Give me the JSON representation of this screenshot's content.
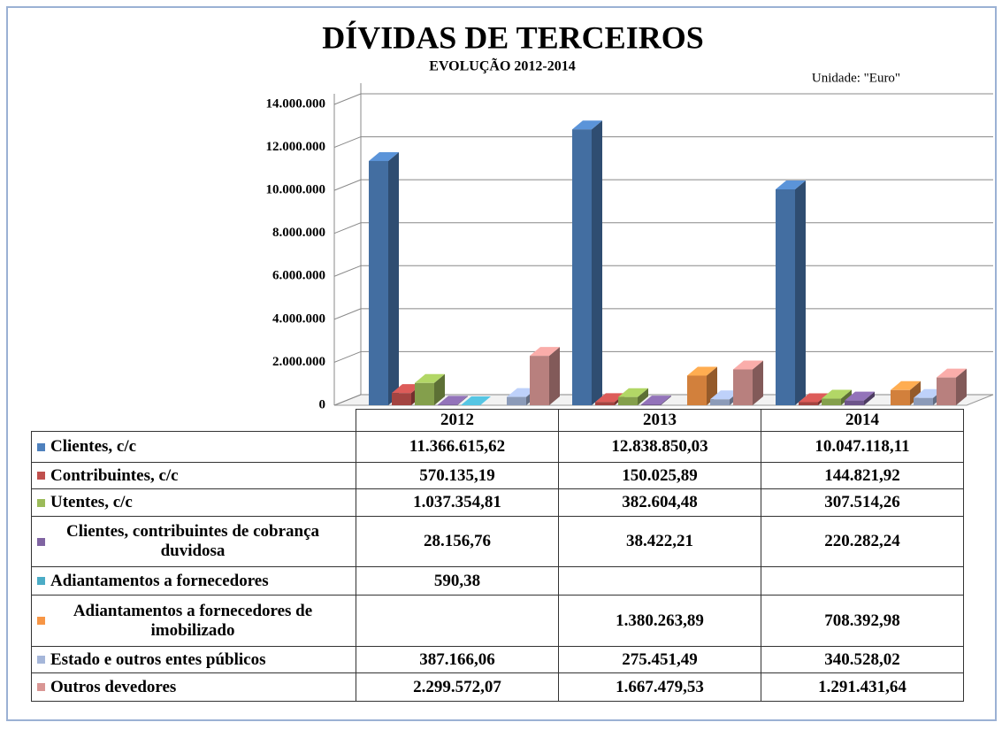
{
  "chart_data": {
    "type": "bar3d",
    "title": "DÍVIDAS DE TERCEIROS",
    "subtitle": "EVOLUÇÃO 2012-2014",
    "annotation": "Unidade: \"Euro\"",
    "categories": [
      "2012",
      "2013",
      "2014"
    ],
    "ylim": [
      0,
      14000000
    ],
    "yticks": [
      0,
      {
        "value": 2000000,
        "label": "2.000.000"
      },
      {
        "value": 4000000,
        "label": "4.000.000"
      },
      {
        "value": 6000000,
        "label": "6.000.000"
      },
      {
        "value": 8000000,
        "label": "8.000.000"
      },
      {
        "value": 10000000,
        "label": "10.000.000"
      },
      {
        "value": 12000000,
        "label": "12.000.000"
      },
      {
        "value": 14000000,
        "label": "14.000.000"
      }
    ],
    "grid": true,
    "series": [
      {
        "name": "Clientes, c/c",
        "color": "#4f81bd",
        "values": [
          11366615.62,
          12838850.03,
          10047118.11
        ],
        "value_labels": [
          "11.366.615,62",
          "12.838.850,03",
          "10.047.118,11"
        ]
      },
      {
        "name": "Contribuintes, c/c",
        "color": "#c0504d",
        "values": [
          570135.19,
          150025.89,
          144821.92
        ],
        "value_labels": [
          "570.135,19",
          "150.025,89",
          "144.821,92"
        ]
      },
      {
        "name": "Utentes, c/c",
        "color": "#9bbb59",
        "values": [
          1037354.81,
          382604.48,
          307514.26
        ],
        "value_labels": [
          "1.037.354,81",
          "382.604,48",
          "307.514,26"
        ]
      },
      {
        "name": "Clientes, contribuintes de cobrança duvidosa",
        "color": "#8064a2",
        "values": [
          28156.76,
          38422.21,
          220282.24
        ],
        "value_labels": [
          "28.156,76",
          "38.422,21",
          "220.282,24"
        ]
      },
      {
        "name": "Adiantamentos a fornecedores",
        "color": "#4bacc6",
        "values": [
          590.38,
          null,
          null
        ],
        "value_labels": [
          "590,38",
          null,
          null
        ]
      },
      {
        "name": "Adiantamentos a fornecedores de imobilizado",
        "color": "#f79646",
        "values": [
          null,
          1380263.89,
          708392.98
        ],
        "value_labels": [
          null,
          "1.380.263,89",
          "708.392,98"
        ]
      },
      {
        "name": "Estado e outros entes públicos",
        "color": "#a5b6d9",
        "values": [
          387166.06,
          275451.49,
          340528.02
        ],
        "value_labels": [
          "387.166,06",
          "275.451,49",
          "340.528,02"
        ]
      },
      {
        "name": "Outros devedores",
        "color": "#d99694",
        "values": [
          2299572.07,
          1667479.53,
          1291431.64
        ],
        "value_labels": [
          "2.299.572,07",
          "1.667.479,53",
          "1.291.431,64"
        ]
      }
    ]
  }
}
